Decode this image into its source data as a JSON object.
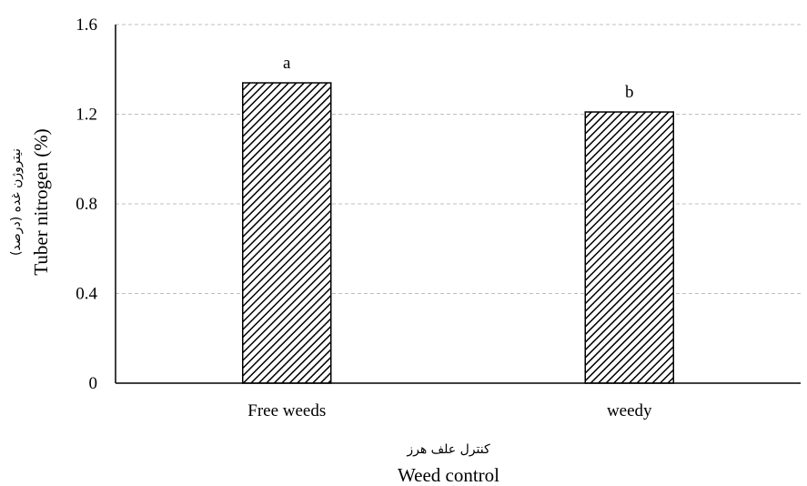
{
  "chart_data": {
    "type": "bar",
    "categories": [
      "Free weeds",
      "weedy"
    ],
    "values": [
      1.34,
      1.21
    ],
    "data_labels": [
      "a",
      "b"
    ],
    "ylim": [
      0,
      1.6
    ],
    "yticks": [
      0,
      0.4,
      0.8,
      1.2,
      1.6
    ],
    "ytick_labels": [
      "0",
      "0.4",
      "0.8",
      "1.2",
      "1.6"
    ],
    "xlabel": "Weed control",
    "xlabel_fa": "کنترل علف هرز",
    "ylabel": "Tuber nitrogen (%)",
    "ylabel_fa": "نیتروژن غده (درصد)",
    "grid": "horizontal dashed",
    "bar_fill": "diagonal hatch",
    "colors": {
      "bar_hatch": "#000000",
      "bar_background": "#ffffff",
      "axis": "#000000",
      "grid": "#bfbfbf"
    },
    "legend": "none"
  }
}
